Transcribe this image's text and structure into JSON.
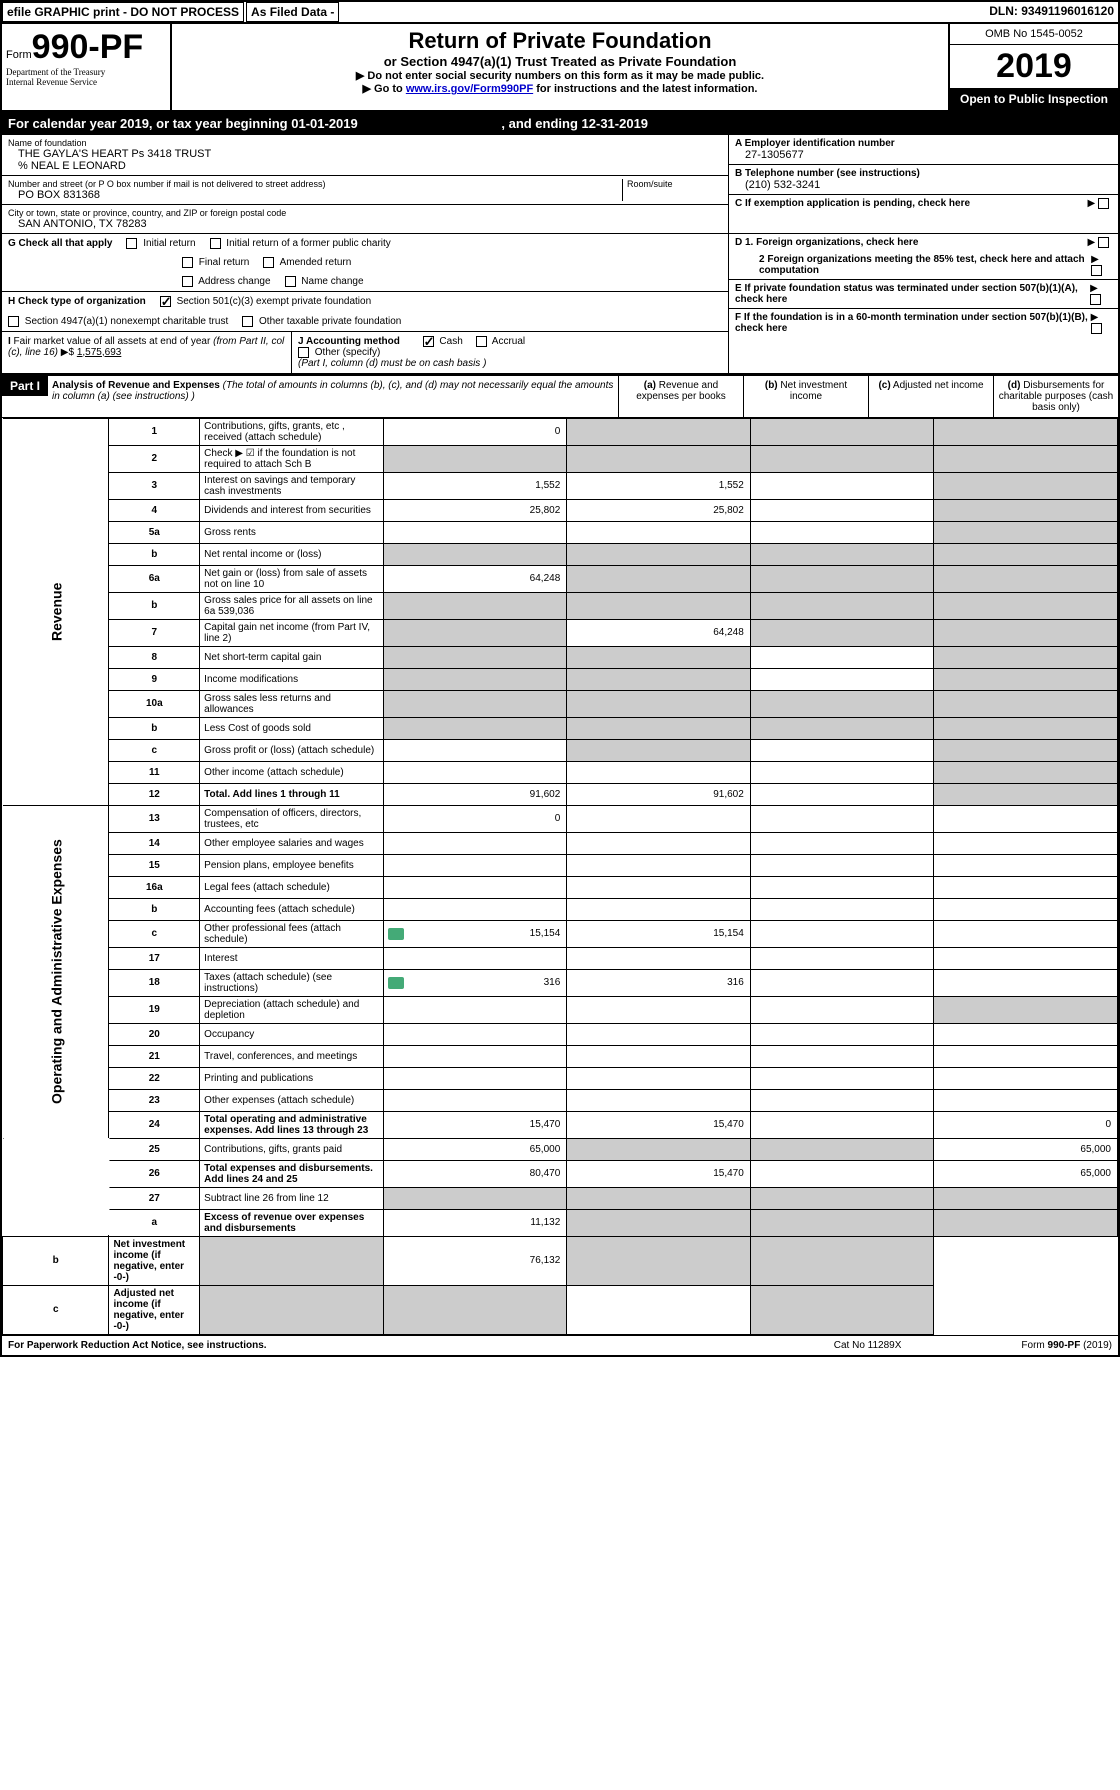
{
  "topbar": {
    "efile": "efile GRAPHIC print - DO NOT PROCESS",
    "asfiled": "As Filed Data -",
    "dln": "DLN: 93491196016120"
  },
  "header": {
    "form_label": "Form",
    "form_number": "990-PF",
    "dept1": "Department of the Treasury",
    "dept2": "Internal Revenue Service",
    "title": "Return of Private Foundation",
    "subtitle": "or Section 4947(a)(1) Trust Treated as Private Foundation",
    "instr1": "▶ Do not enter social security numbers on this form as it may be made public.",
    "instr2_prefix": "▶ Go to ",
    "instr2_link": "www.irs.gov/Form990PF",
    "instr2_suffix": " for instructions and the latest information.",
    "omb": "OMB No 1545-0052",
    "year": "2019",
    "open": "Open to Public Inspection"
  },
  "calyear": {
    "text_prefix": "For calendar year 2019, or tax year beginning ",
    "begin": "01-01-2019",
    "text_mid": ", and ending ",
    "end": "12-31-2019"
  },
  "entity": {
    "name_label": "Name of foundation",
    "name": "THE GAYLA'S HEART Ps 3418 TRUST",
    "care_of": "% NEAL E LEONARD",
    "addr_label": "Number and street (or P O  box number if mail is not delivered to street address)",
    "addr": "PO BOX 831368",
    "room_label": "Room/suite",
    "city_label": "City or town, state or province, country, and ZIP or foreign postal code",
    "city": "SAN ANTONIO, TX  78283",
    "a_label": "A Employer identification number",
    "ein": "27-1305677",
    "b_label": "B Telephone number (see instructions)",
    "phone": "(210) 532-3241",
    "c_label": "C If exemption application is pending, check here"
  },
  "g": {
    "label": "G Check all that apply",
    "opts": [
      "Initial return",
      "Initial return of a former public charity",
      "Final return",
      "Amended return",
      "Address change",
      "Name change"
    ]
  },
  "h": {
    "label": "H Check type of organization",
    "opt1": "Section 501(c)(3) exempt private foundation",
    "opt2": "Section 4947(a)(1) nonexempt charitable trust",
    "opt3": "Other taxable private foundation"
  },
  "i": {
    "label": "I Fair market value of all assets at end of year (from Part II, col  (c), line 16) ▶$ ",
    "value": "1,575,693"
  },
  "j": {
    "label": "J Accounting method",
    "cash": "Cash",
    "accrual": "Accrual",
    "other": "Other (specify)",
    "note": "(Part I, column (d) must be on cash basis )"
  },
  "d": {
    "d1": "D 1. Foreign organizations, check here",
    "d2": "2 Foreign organizations meeting the 85% test, check here and attach computation",
    "e": "E  If private foundation status was terminated under section 507(b)(1)(A), check here",
    "f": "F  If the foundation is in a 60-month termination under section 507(b)(1)(B), check here"
  },
  "part1": {
    "label": "Part I",
    "title": "Analysis of Revenue and Expenses",
    "desc": " (The total of amounts in columns (b), (c), and (d) may not necessarily equal the amounts in column (a) (see instructions) )",
    "cols": {
      "a": "(a) Revenue and expenses per books",
      "b": "(b) Net investment income",
      "c": "(c) Adjusted net income",
      "d": "(d) Disbursements for charitable purposes (cash basis only)"
    }
  },
  "sidelabels": {
    "revenue": "Revenue",
    "expenses": "Operating and Administrative Expenses"
  },
  "rows": [
    {
      "n": "1",
      "d": "Contributions, gifts, grants, etc , received (attach schedule)",
      "a": "0",
      "b": "",
      "c": "",
      "dd": "",
      "shaded": [
        false,
        true,
        true,
        true
      ]
    },
    {
      "n": "2",
      "d": "Check ▶ ☑ if the foundation is not required to attach Sch B",
      "a": "",
      "b": "",
      "c": "",
      "dd": "",
      "shaded": [
        true,
        true,
        true,
        true
      ],
      "bold_not": true
    },
    {
      "n": "3",
      "d": "Interest on savings and temporary cash investments",
      "a": "1,552",
      "b": "1,552",
      "c": "",
      "dd": "",
      "shaded": [
        false,
        false,
        false,
        true
      ]
    },
    {
      "n": "4",
      "d": "Dividends and interest from securities",
      "a": "25,802",
      "b": "25,802",
      "c": "",
      "dd": "",
      "shaded": [
        false,
        false,
        false,
        true
      ]
    },
    {
      "n": "5a",
      "d": "Gross rents",
      "a": "",
      "b": "",
      "c": "",
      "dd": "",
      "shaded": [
        false,
        false,
        false,
        true
      ]
    },
    {
      "n": "b",
      "d": "Net rental income or (loss)",
      "a": "",
      "b": "",
      "c": "",
      "dd": "",
      "shaded": [
        true,
        true,
        true,
        true
      ]
    },
    {
      "n": "6a",
      "d": "Net gain or (loss) from sale of assets not on line 10",
      "a": "64,248",
      "b": "",
      "c": "",
      "dd": "",
      "shaded": [
        false,
        true,
        true,
        true
      ]
    },
    {
      "n": "b",
      "d": "Gross sales price for all assets on line 6a          539,036",
      "a": "",
      "b": "",
      "c": "",
      "dd": "",
      "shaded": [
        true,
        true,
        true,
        true
      ]
    },
    {
      "n": "7",
      "d": "Capital gain net income (from Part IV, line 2)",
      "a": "",
      "b": "64,248",
      "c": "",
      "dd": "",
      "shaded": [
        true,
        false,
        true,
        true
      ]
    },
    {
      "n": "8",
      "d": "Net short-term capital gain",
      "a": "",
      "b": "",
      "c": "",
      "dd": "",
      "shaded": [
        true,
        true,
        false,
        true
      ]
    },
    {
      "n": "9",
      "d": "Income modifications",
      "a": "",
      "b": "",
      "c": "",
      "dd": "",
      "shaded": [
        true,
        true,
        false,
        true
      ]
    },
    {
      "n": "10a",
      "d": "Gross sales less returns and allowances",
      "a": "",
      "b": "",
      "c": "",
      "dd": "",
      "shaded": [
        true,
        true,
        true,
        true
      ]
    },
    {
      "n": "b",
      "d": "Less  Cost of goods sold",
      "a": "",
      "b": "",
      "c": "",
      "dd": "",
      "shaded": [
        true,
        true,
        true,
        true
      ]
    },
    {
      "n": "c",
      "d": "Gross profit or (loss) (attach schedule)",
      "a": "",
      "b": "",
      "c": "",
      "dd": "",
      "shaded": [
        false,
        true,
        false,
        true
      ]
    },
    {
      "n": "11",
      "d": "Other income (attach schedule)",
      "a": "",
      "b": "",
      "c": "",
      "dd": "",
      "shaded": [
        false,
        false,
        false,
        true
      ]
    },
    {
      "n": "12",
      "d": "Total. Add lines 1 through 11",
      "a": "91,602",
      "b": "91,602",
      "c": "",
      "dd": "",
      "shaded": [
        false,
        false,
        false,
        true
      ],
      "bold": true
    },
    {
      "n": "13",
      "d": "Compensation of officers, directors, trustees, etc",
      "a": "0",
      "b": "",
      "c": "",
      "dd": "",
      "shaded": [
        false,
        false,
        false,
        false
      ]
    },
    {
      "n": "14",
      "d": "Other employee salaries and wages",
      "a": "",
      "b": "",
      "c": "",
      "dd": "",
      "shaded": [
        false,
        false,
        false,
        false
      ]
    },
    {
      "n": "15",
      "d": "Pension plans, employee benefits",
      "a": "",
      "b": "",
      "c": "",
      "dd": "",
      "shaded": [
        false,
        false,
        false,
        false
      ]
    },
    {
      "n": "16a",
      "d": "Legal fees (attach schedule)",
      "a": "",
      "b": "",
      "c": "",
      "dd": "",
      "shaded": [
        false,
        false,
        false,
        false
      ]
    },
    {
      "n": "b",
      "d": "Accounting fees (attach schedule)",
      "a": "",
      "b": "",
      "c": "",
      "dd": "",
      "shaded": [
        false,
        false,
        false,
        false
      ]
    },
    {
      "n": "c",
      "d": "Other professional fees (attach schedule)",
      "a": "15,154",
      "b": "15,154",
      "c": "",
      "dd": "",
      "shaded": [
        false,
        false,
        false,
        false
      ],
      "icon": true
    },
    {
      "n": "17",
      "d": "Interest",
      "a": "",
      "b": "",
      "c": "",
      "dd": "",
      "shaded": [
        false,
        false,
        false,
        false
      ]
    },
    {
      "n": "18",
      "d": "Taxes (attach schedule) (see instructions)",
      "a": "316",
      "b": "316",
      "c": "",
      "dd": "",
      "shaded": [
        false,
        false,
        false,
        false
      ],
      "icon": true
    },
    {
      "n": "19",
      "d": "Depreciation (attach schedule) and depletion",
      "a": "",
      "b": "",
      "c": "",
      "dd": "",
      "shaded": [
        false,
        false,
        false,
        true
      ]
    },
    {
      "n": "20",
      "d": "Occupancy",
      "a": "",
      "b": "",
      "c": "",
      "dd": "",
      "shaded": [
        false,
        false,
        false,
        false
      ]
    },
    {
      "n": "21",
      "d": "Travel, conferences, and meetings",
      "a": "",
      "b": "",
      "c": "",
      "dd": "",
      "shaded": [
        false,
        false,
        false,
        false
      ]
    },
    {
      "n": "22",
      "d": "Printing and publications",
      "a": "",
      "b": "",
      "c": "",
      "dd": "",
      "shaded": [
        false,
        false,
        false,
        false
      ]
    },
    {
      "n": "23",
      "d": "Other expenses (attach schedule)",
      "a": "",
      "b": "",
      "c": "",
      "dd": "",
      "shaded": [
        false,
        false,
        false,
        false
      ]
    },
    {
      "n": "24",
      "d": "Total operating and administrative expenses. Add lines 13 through 23",
      "a": "15,470",
      "b": "15,470",
      "c": "",
      "dd": "0",
      "shaded": [
        false,
        false,
        false,
        false
      ],
      "bold": true
    },
    {
      "n": "25",
      "d": "Contributions, gifts, grants paid",
      "a": "65,000",
      "b": "",
      "c": "",
      "dd": "65,000",
      "shaded": [
        false,
        true,
        true,
        false
      ]
    },
    {
      "n": "26",
      "d": "Total expenses and disbursements. Add lines 24 and 25",
      "a": "80,470",
      "b": "15,470",
      "c": "",
      "dd": "65,000",
      "shaded": [
        false,
        false,
        false,
        false
      ],
      "bold": true
    },
    {
      "n": "27",
      "d": "Subtract line 26 from line 12",
      "a": "",
      "b": "",
      "c": "",
      "dd": "",
      "shaded": [
        true,
        true,
        true,
        true
      ]
    },
    {
      "n": "a",
      "d": "Excess of revenue over expenses and disbursements",
      "a": "11,132",
      "b": "",
      "c": "",
      "dd": "",
      "shaded": [
        false,
        true,
        true,
        true
      ],
      "bold": true
    },
    {
      "n": "b",
      "d": "Net investment income (if negative, enter -0-)",
      "a": "",
      "b": "76,132",
      "c": "",
      "dd": "",
      "shaded": [
        true,
        false,
        true,
        true
      ],
      "bold": true
    },
    {
      "n": "c",
      "d": "Adjusted net income (if negative, enter -0-)",
      "a": "",
      "b": "",
      "c": "",
      "dd": "",
      "shaded": [
        true,
        true,
        false,
        true
      ],
      "bold": true
    }
  ],
  "footer": {
    "left": "For Paperwork Reduction Act Notice, see instructions.",
    "mid": "Cat  No  11289X",
    "right": "Form 990-PF (2019)"
  }
}
